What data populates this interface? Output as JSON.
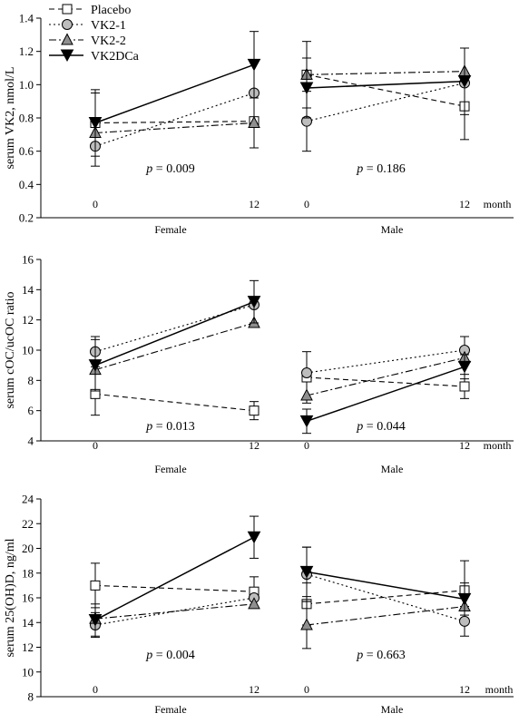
{
  "legend": [
    {
      "name": "Placebo",
      "marker": "square",
      "color": "#ffffff",
      "dash": "6,4"
    },
    {
      "name": "VK2-1",
      "marker": "circle",
      "color": "#bdbdbd",
      "dash": "2,3"
    },
    {
      "name": "VK2-2",
      "marker": "triangle-up",
      "color": "#8f8f8f",
      "dash": "8,3,2,3"
    },
    {
      "name": "VK2DCa",
      "marker": "triangle-down",
      "color": "#000000",
      "dash": ""
    }
  ],
  "chart_data": [
    {
      "type": "line",
      "ylabel": "serum VK2, nmol/L",
      "ylim": [
        0.2,
        1.4
      ],
      "yticks": [
        0.2,
        0.4,
        0.6,
        0.8,
        1.0,
        1.2,
        1.4
      ],
      "ytick_labels": [
        "0.2",
        "0.4",
        "0.6",
        "0.8",
        "1.0",
        "1.2",
        "1.4"
      ],
      "x_tick_labels": [
        "0",
        "12",
        "0",
        "12"
      ],
      "unit_label": "month",
      "groups": [
        "Female",
        "Male"
      ],
      "p_values": [
        {
          "prefix": "p",
          "text": " = 0.009"
        },
        {
          "prefix": "p",
          "text": " = 0.186"
        }
      ],
      "series": [
        {
          "name": "Placebo",
          "female": [
            0.77,
            0.78
          ],
          "male": [
            1.06,
            0.87
          ],
          "female_err": [
            [
              0.57,
              0.97
            ],
            [
              0.62,
              0.94
            ]
          ],
          "male_err": [
            [
              0.86,
              1.26
            ],
            [
              0.67,
              1.07
            ]
          ]
        },
        {
          "name": "VK2-1",
          "female": [
            0.63,
            0.95
          ],
          "male": [
            0.78,
            1.01
          ],
          "female_err": null,
          "male_err": [
            [
              0.6,
              0.96
            ],
            null
          ]
        },
        {
          "name": "VK2-2",
          "female": [
            0.71,
            0.77
          ],
          "male": [
            1.06,
            1.08
          ],
          "female_err": null,
          "male_err": null
        },
        {
          "name": "VK2DCa",
          "female": [
            0.77,
            1.12
          ],
          "male": [
            0.98,
            1.02
          ],
          "female_err": [
            [
              0.51,
              0.95
            ],
            [
              0.92,
              1.32
            ]
          ],
          "male_err": [
            [
              0.8,
              1.16
            ],
            [
              0.82,
              1.22
            ]
          ]
        }
      ]
    },
    {
      "type": "line",
      "ylabel": "serum cOC/ucOC ratio",
      "ylim": [
        4,
        16
      ],
      "yticks": [
        4,
        6,
        8,
        10,
        12,
        14,
        16
      ],
      "ytick_labels": [
        "4",
        "6",
        "8",
        "10",
        "12",
        "14",
        "16"
      ],
      "x_tick_labels": [
        "0",
        "12",
        "0",
        "12"
      ],
      "unit_label": "month",
      "groups": [
        "Female",
        "Male"
      ],
      "p_values": [
        {
          "prefix": "p",
          "text": " = 0.013"
        },
        {
          "prefix": "p",
          "text": " = 0.044"
        }
      ],
      "series": [
        {
          "name": "Placebo",
          "female": [
            7.1,
            6.0
          ],
          "male": [
            8.2,
            7.6
          ],
          "female_err": [
            [
              5.7,
              8.5
            ],
            [
              5.4,
              6.6
            ]
          ],
          "male_err": [
            [
              6.5,
              9.9
            ],
            [
              6.8,
              8.4
            ]
          ]
        },
        {
          "name": "VK2-1",
          "female": [
            9.9,
            13.0
          ],
          "male": [
            8.5,
            10.0
          ],
          "female_err": [
            [
              8.9,
              10.9
            ],
            null
          ],
          "male_err": [
            null,
            [
              9.1,
              10.9
            ]
          ]
        },
        {
          "name": "VK2-2",
          "female": [
            8.7,
            11.8
          ],
          "male": [
            7.0,
            9.5
          ],
          "female_err": null,
          "male_err": null
        },
        {
          "name": "VK2DCa",
          "female": [
            9.0,
            13.2
          ],
          "male": [
            5.3,
            8.9
          ],
          "female_err": [
            [
              7.3,
              10.7
            ],
            [
              11.8,
              14.6
            ]
          ],
          "male_err": [
            [
              4.5,
              6.1
            ],
            [
              8.1,
              9.7
            ]
          ]
        }
      ]
    },
    {
      "type": "line",
      "ylabel": "serum 25(OH)D, ng/ml",
      "ylim": [
        8,
        24
      ],
      "yticks": [
        8,
        10,
        12,
        14,
        16,
        18,
        20,
        22,
        24
      ],
      "ytick_labels": [
        "8",
        "10",
        "12",
        "14",
        "16",
        "18",
        "20",
        "22",
        "24"
      ],
      "x_tick_labels": [
        "0",
        "12",
        "0",
        "12"
      ],
      "unit_label": "month",
      "groups": [
        "Female",
        "Male"
      ],
      "p_values": [
        {
          "prefix": "p",
          "text": " = 0.004"
        },
        {
          "prefix": "p",
          "text": " = 0.663"
        }
      ],
      "series": [
        {
          "name": "Placebo",
          "female": [
            17.0,
            16.5
          ],
          "male": [
            15.5,
            16.6
          ],
          "female_err": [
            [
              15.2,
              18.8
            ],
            [
              15.3,
              17.7
            ]
          ],
          "male_err": [
            [
              13.8,
              17.2
            ],
            [
              14.2,
              19.0
            ]
          ]
        },
        {
          "name": "VK2-1",
          "female": [
            13.8,
            16.0
          ],
          "male": [
            17.9,
            14.1
          ],
          "female_err": [
            [
              12.8,
              14.8
            ],
            null
          ],
          "male_err": [
            [
              15.7,
              20.1
            ],
            [
              12.9,
              15.3
            ]
          ]
        },
        {
          "name": "VK2-2",
          "female": [
            14.3,
            15.5
          ],
          "male": [
            13.8,
            15.3
          ],
          "female_err": null,
          "male_err": [
            [
              11.9,
              15.7
            ],
            null
          ]
        },
        {
          "name": "VK2DCa",
          "female": [
            14.2,
            20.9
          ],
          "male": [
            18.1,
            15.9
          ],
          "female_err": [
            [
              12.9,
              15.5
            ],
            [
              19.2,
              22.6
            ]
          ],
          "male_err": [
            [
              16.1,
              20.1
            ],
            [
              14.6,
              17.2
            ]
          ]
        }
      ]
    }
  ]
}
